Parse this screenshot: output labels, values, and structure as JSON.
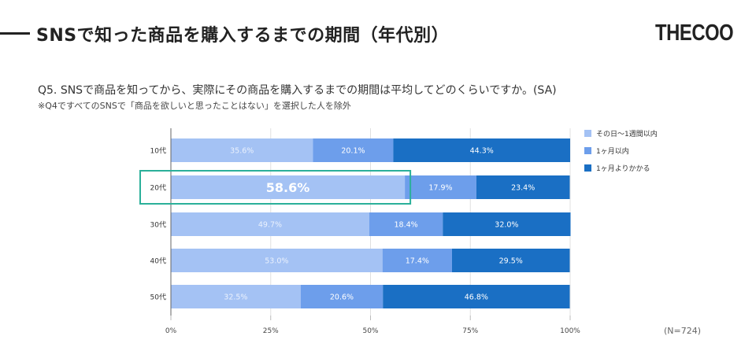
{
  "header": {
    "title": "SNSで知った商品を購入するまでの期間（年代別）",
    "logo": "THECOO"
  },
  "question": "Q5. SNSで商品を知ってから、実際にその商品を購入するまでの期間は平均してどのくらいですか。(SA)",
  "note": "※Q4ですべてのSNSで「商品を欲しいと思ったことはない」を選択した人を除外",
  "sample_size": "(N=724)",
  "colors": {
    "series1": "#a4c2f4",
    "series2": "#6d9eeb",
    "series3": "#1a6fc4",
    "highlight": "#2bb09a",
    "grid": "#e0e0e0",
    "axis": "#666666"
  },
  "chart_data": {
    "type": "bar",
    "orientation": "horizontal",
    "stacked": "percent",
    "title": "SNSで知った商品を購入するまでの期間（年代別）",
    "xlabel": "",
    "ylabel": "",
    "xlim": [
      0,
      100
    ],
    "grid": true,
    "legend_position": "right",
    "categories": [
      "10代",
      "20代",
      "30代",
      "40代",
      "50代"
    ],
    "x_ticks": [
      "0%",
      "25%",
      "50%",
      "75%",
      "100%"
    ],
    "x_tick_values": [
      0,
      25,
      50,
      75,
      100
    ],
    "series": [
      {
        "name": "その日〜1週間以内",
        "values": [
          35.6,
          58.6,
          49.7,
          53.0,
          32.5
        ],
        "labels": [
          "35.6%",
          "58.6%",
          "49.7%",
          "53.0%",
          "32.5%"
        ]
      },
      {
        "name": "1ヶ月以内",
        "values": [
          20.1,
          17.9,
          18.4,
          17.4,
          20.6
        ],
        "labels": [
          "20.1%",
          "17.9%",
          "18.4%",
          "17.4%",
          "20.6%"
        ]
      },
      {
        "name": "1ヶ月よりかかる",
        "values": [
          44.3,
          23.4,
          32.0,
          29.5,
          46.8
        ],
        "labels": [
          "44.3%",
          "23.4%",
          "32.0%",
          "29.5%",
          "46.8%"
        ]
      }
    ],
    "highlight": {
      "category": "20代",
      "series": "その日〜1週間以内"
    }
  }
}
